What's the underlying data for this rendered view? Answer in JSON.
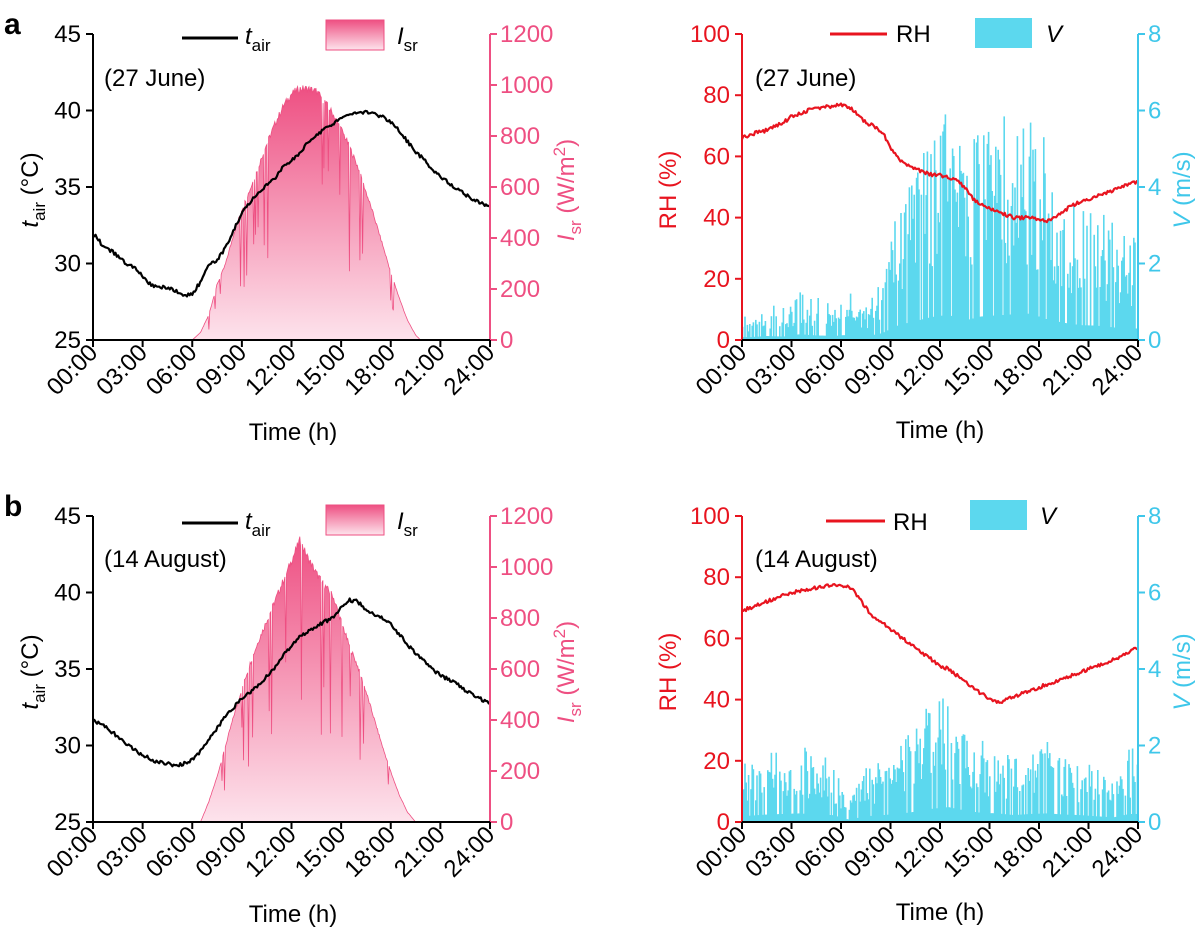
{
  "colors": {
    "tair": "#000000",
    "isr": "#ee4f82",
    "isr_light": "#fde3ec",
    "rh": "#e8141f",
    "v": "#5cd8ee",
    "v_axis": "#3fc7ea",
    "axis": "#000000"
  },
  "xlabel": "Time (h)",
  "x_ticks": [
    "00:00",
    "03:00",
    "06:00",
    "09:00",
    "12:00",
    "15:00",
    "18:00",
    "21:00",
    "24:00"
  ],
  "chart_data": [
    {
      "panel": "a",
      "type": "line+area",
      "date": "(27 June)",
      "xlabel": "Time (h)",
      "x_range_h": [
        0,
        24
      ],
      "left_axis": {
        "title": "tair (°C)",
        "ylim": [
          25,
          45
        ],
        "ticks": [
          "25",
          "30",
          "35",
          "40",
          "45"
        ],
        "tick_values": [
          25,
          30,
          35,
          40,
          45
        ]
      },
      "right_axis": {
        "title": "Isr (W/m2)",
        "ylim": [
          0,
          1200
        ],
        "ticks": [
          "0",
          "200",
          "400",
          "600",
          "800",
          "1000",
          "1200"
        ],
        "tick_values": [
          0,
          200,
          400,
          600,
          800,
          1000,
          1200
        ]
      },
      "legend": [
        "tair",
        "Isr"
      ],
      "series": [
        {
          "name": "tair",
          "type": "line",
          "axis": "left",
          "x": [
            0,
            0.5,
            1,
            1.5,
            2,
            2.5,
            3,
            3.5,
            4,
            4.5,
            5,
            5.5,
            6,
            6.5,
            7,
            7.5,
            8,
            8.5,
            9,
            9.5,
            10,
            10.5,
            11,
            11.5,
            12,
            12.5,
            13,
            13.5,
            14,
            14.5,
            15,
            15.5,
            16,
            16.5,
            17,
            17.5,
            18,
            18.5,
            19,
            19.5,
            20,
            20.5,
            21,
            21.5,
            22,
            22.5,
            23,
            23.5,
            24
          ],
          "values": [
            32.0,
            31.3,
            30.9,
            30.5,
            30.0,
            29.7,
            29.2,
            28.6,
            28.5,
            28.4,
            28.2,
            27.9,
            28.0,
            28.8,
            29.9,
            30.2,
            31.0,
            32.2,
            33.3,
            34.0,
            34.6,
            35.1,
            35.6,
            36.3,
            36.7,
            37.2,
            37.9,
            38.4,
            38.8,
            39.1,
            39.5,
            39.7,
            39.9,
            39.9,
            39.8,
            39.6,
            39.2,
            38.7,
            38.0,
            37.3,
            36.8,
            36.2,
            35.7,
            35.3,
            34.9,
            34.5,
            34.2,
            33.9,
            33.7
          ]
        },
        {
          "name": "Isr",
          "type": "area",
          "axis": "right",
          "x": [
            6.0,
            6.5,
            7.0,
            7.5,
            8.0,
            8.5,
            9.0,
            9.5,
            10.0,
            10.5,
            11.0,
            11.5,
            12.0,
            12.5,
            13.0,
            13.5,
            14.0,
            14.5,
            15.0,
            15.5,
            16.0,
            16.5,
            17.0,
            17.5,
            18.0,
            18.5,
            19.0,
            19.5,
            19.8
          ],
          "values": [
            0,
            30,
            100,
            220,
            300,
            420,
            520,
            600,
            690,
            780,
            860,
            930,
            980,
            1000,
            1000,
            990,
            950,
            900,
            840,
            770,
            690,
            590,
            490,
            380,
            270,
            170,
            80,
            20,
            0
          ]
        }
      ]
    },
    {
      "panel": "a",
      "type": "line+bar",
      "date": "(27 June)",
      "xlabel": "Time (h)",
      "x_range_h": [
        0,
        24
      ],
      "left_axis": {
        "title": "RH (%)",
        "ylim": [
          0,
          100
        ],
        "ticks": [
          "0",
          "20",
          "40",
          "60",
          "80",
          "100"
        ],
        "tick_values": [
          0,
          20,
          40,
          60,
          80,
          100
        ]
      },
      "right_axis": {
        "title": "V (m/s)",
        "ylim": [
          0,
          8
        ],
        "ticks": [
          "0",
          "2",
          "4",
          "6",
          "8"
        ],
        "tick_values": [
          0,
          2,
          4,
          6,
          8
        ]
      },
      "legend": [
        "RH",
        "V"
      ],
      "series": [
        {
          "name": "RH",
          "type": "line",
          "axis": "left",
          "x": [
            0,
            0.5,
            1,
            1.5,
            2,
            2.5,
            3,
            3.5,
            4,
            4.5,
            5,
            5.5,
            6,
            6.5,
            7,
            7.5,
            8,
            8.5,
            9,
            9.5,
            10,
            10.5,
            11,
            11.5,
            12,
            12.5,
            13,
            13.5,
            14,
            14.5,
            15,
            15.5,
            16,
            16.5,
            17,
            17.5,
            18,
            18.5,
            19,
            19.5,
            20,
            20.5,
            21,
            21.5,
            22,
            22.5,
            23,
            23.5,
            24
          ],
          "values": [
            66,
            67,
            68,
            68.5,
            70,
            71,
            73,
            74,
            75,
            75.5,
            76,
            76.5,
            77,
            76,
            74,
            71,
            70,
            68,
            63,
            59,
            57,
            56,
            55,
            54,
            54,
            53,
            52,
            50,
            46,
            44,
            43,
            42,
            41,
            40,
            40,
            40,
            39,
            39,
            40,
            42,
            44,
            45,
            46,
            47,
            48,
            49,
            50,
            51,
            52
          ]
        },
        {
          "name": "V",
          "type": "bar",
          "axis": "right",
          "x": [
            0.5,
            1.5,
            2.5,
            3.5,
            4.5,
            5.5,
            6.5,
            7.5,
            8.5,
            9.5,
            10.5,
            11.5,
            12.5,
            13.5,
            14.5,
            15.5,
            16.5,
            17.5,
            18.5,
            19.5,
            20.5,
            21.5,
            22.5,
            23.5
          ],
          "values": [
            0.5,
            0.7,
            0.6,
            1.0,
            0.8,
            0.7,
            0.9,
            0.6,
            1.2,
            2.6,
            3.3,
            4.0,
            4.4,
            3.4,
            4.1,
            4.3,
            4.5,
            4.6,
            3.6,
            3.0,
            2.6,
            2.5,
            2.2,
            2.0
          ]
        }
      ]
    },
    {
      "panel": "b",
      "type": "line+area",
      "date": "(14 August)",
      "xlabel": "Time (h)",
      "x_range_h": [
        0,
        24
      ],
      "left_axis": {
        "title": "tair (°C)",
        "ylim": [
          25,
          45
        ],
        "ticks": [
          "25",
          "30",
          "35",
          "40",
          "45"
        ],
        "tick_values": [
          25,
          30,
          35,
          40,
          45
        ]
      },
      "right_axis": {
        "title": "Isr (W/m2)",
        "ylim": [
          0,
          1200
        ],
        "ticks": [
          "0",
          "200",
          "400",
          "600",
          "800",
          "1000",
          "1200"
        ],
        "tick_values": [
          0,
          200,
          400,
          600,
          800,
          1000,
          1200
        ]
      },
      "legend": [
        "tair",
        "Isr"
      ],
      "series": [
        {
          "name": "tair",
          "type": "line",
          "axis": "left",
          "x": [
            0,
            0.5,
            1,
            1.5,
            2,
            2.5,
            3,
            3.5,
            4,
            4.5,
            5,
            5.5,
            6,
            6.5,
            7,
            7.5,
            8,
            8.5,
            9,
            9.5,
            10,
            10.5,
            11,
            11.5,
            12,
            12.5,
            13,
            13.5,
            14,
            14.5,
            15,
            15.5,
            16,
            16.5,
            17,
            17.5,
            18,
            18.5,
            19,
            19.5,
            20,
            20.5,
            21,
            21.5,
            22,
            22.5,
            23,
            23.5,
            24
          ],
          "values": [
            31.6,
            31.4,
            31.0,
            30.6,
            30.1,
            29.7,
            29.4,
            29.1,
            28.9,
            28.8,
            28.7,
            28.8,
            29.1,
            29.6,
            30.4,
            31.1,
            31.9,
            32.5,
            33.1,
            33.5,
            33.9,
            34.5,
            35.1,
            35.9,
            36.5,
            37.1,
            37.5,
            37.8,
            38.1,
            38.3,
            39.0,
            39.5,
            39.4,
            38.9,
            38.5,
            38.3,
            37.9,
            37.3,
            36.6,
            36.0,
            35.5,
            35.0,
            34.6,
            34.3,
            34.0,
            33.6,
            33.3,
            33.0,
            32.8
          ]
        },
        {
          "name": "Isr",
          "type": "area",
          "axis": "right",
          "x": [
            6.5,
            7.0,
            7.5,
            8.0,
            8.5,
            9.0,
            9.5,
            10.0,
            10.5,
            11.0,
            11.5,
            12.0,
            12.5,
            13.0,
            13.5,
            14.0,
            14.5,
            15.0,
            15.5,
            16.0,
            16.5,
            17.0,
            17.5,
            18.0,
            18.5,
            19.0,
            19.5
          ],
          "values": [
            0,
            80,
            180,
            300,
            420,
            530,
            630,
            720,
            800,
            880,
            960,
            1040,
            1120,
            1050,
            990,
            940,
            900,
            800,
            700,
            620,
            520,
            410,
            300,
            200,
            110,
            40,
            0
          ]
        }
      ]
    },
    {
      "panel": "b",
      "type": "line+bar",
      "date": "(14 August)",
      "xlabel": "Time (h)",
      "x_range_h": [
        0,
        24
      ],
      "left_axis": {
        "title": "RH (%)",
        "ylim": [
          0,
          100
        ],
        "ticks": [
          "0",
          "20",
          "40",
          "60",
          "80",
          "100"
        ],
        "tick_values": [
          0,
          20,
          40,
          60,
          80,
          100
        ]
      },
      "right_axis": {
        "title": "V (m/s)",
        "ylim": [
          0,
          8
        ],
        "ticks": [
          "0",
          "2",
          "4",
          "6",
          "8"
        ],
        "tick_values": [
          0,
          2,
          4,
          6,
          8
        ]
      },
      "legend": [
        "RH",
        "V"
      ],
      "series": [
        {
          "name": "RH",
          "type": "line",
          "axis": "left",
          "x": [
            0,
            0.5,
            1,
            1.5,
            2,
            2.5,
            3,
            3.5,
            4,
            4.5,
            5,
            5.5,
            6,
            6.5,
            7,
            7.5,
            8,
            8.5,
            9,
            9.5,
            10,
            10.5,
            11,
            11.5,
            12,
            12.5,
            13,
            13.5,
            14,
            14.5,
            15,
            15.5,
            16,
            16.5,
            17,
            17.5,
            18,
            18.5,
            19,
            19.5,
            20,
            20.5,
            21,
            21.5,
            22,
            22.5,
            23,
            23.5,
            24
          ],
          "values": [
            69,
            70,
            71,
            72,
            73,
            74,
            75,
            75.5,
            76,
            76.5,
            77,
            77.5,
            77.5,
            77,
            74,
            70,
            67,
            65,
            63,
            61,
            59,
            57,
            55,
            53,
            51,
            50,
            48,
            46,
            44,
            42,
            40,
            39,
            40,
            41,
            42,
            43,
            44,
            45,
            46,
            47,
            48,
            49,
            50,
            51,
            52,
            53,
            54,
            56,
            57
          ]
        },
        {
          "name": "V",
          "type": "bar",
          "axis": "right",
          "x": [
            0.5,
            1.5,
            2.5,
            3.5,
            4.5,
            5.5,
            6.5,
            7.5,
            8.5,
            9.5,
            10.5,
            11.5,
            12.5,
            13.5,
            14.5,
            15.5,
            16.5,
            17.5,
            18.5,
            19.5,
            20.5,
            21.5,
            22.5,
            23.5
          ],
          "values": [
            1.1,
            1.3,
            1.4,
            1.5,
            1.3,
            1.2,
            0.4,
            1.0,
            1.2,
            1.4,
            1.8,
            2.3,
            2.6,
            2.0,
            1.6,
            1.5,
            1.2,
            1.4,
            1.5,
            1.3,
            1.2,
            1.0,
            0.8,
            1.4
          ]
        }
      ]
    }
  ],
  "panels": [
    {
      "letter": "a"
    },
    {
      "letter": "b"
    }
  ]
}
